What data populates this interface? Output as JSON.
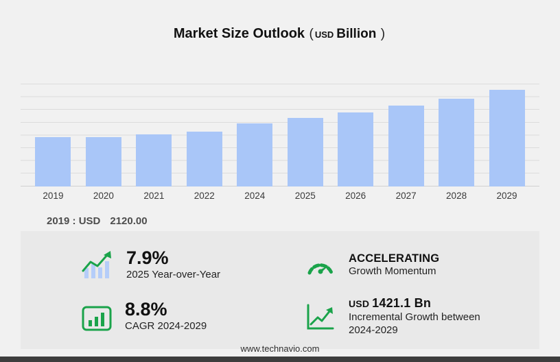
{
  "header": {
    "title": "Market Size Outlook",
    "paren_open": "(",
    "currency": "USD",
    "unit": "Billion",
    "paren_close": ")"
  },
  "chart_data": {
    "type": "bar",
    "title": "Market Size Outlook (USD Billion)",
    "categories": [
      "2019",
      "2020",
      "2021",
      "2022",
      "2024",
      "2025",
      "2026",
      "2027",
      "2028",
      "2029"
    ],
    "values": [
      2120,
      2100,
      2225,
      2360,
      2710,
      2924,
      3181,
      3461,
      3766,
      4131
    ],
    "ylabel": "",
    "xlabel": "",
    "ylim": [
      0,
      4400
    ],
    "grid": true,
    "legend": "none",
    "bar_color": "#a9c6f8"
  },
  "annotation": {
    "label": "2019 : USD",
    "value": "2120.00"
  },
  "stats": [
    {
      "icon": "bar-growth-icon",
      "value": "7.9%",
      "label": "2025 Year-over-Year"
    },
    {
      "icon": "gauge-icon",
      "value": "ACCELERATING",
      "label": "Growth Momentum"
    },
    {
      "icon": "cagr-chart-icon",
      "value": "8.8%",
      "label": "CAGR 2024-2029"
    },
    {
      "icon": "line-growth-icon",
      "value_prefix": "USD",
      "value": "1421.1 Bn",
      "label": "Incremental Growth between 2024-2029"
    }
  ],
  "colors": {
    "accent_green": "#1aa34a",
    "bar_blue": "#a9c6f8",
    "panel_bg": "#e9e9e9",
    "footer_bar": "#3d3d3d"
  },
  "footer": {
    "url": "www.technavio.com"
  }
}
